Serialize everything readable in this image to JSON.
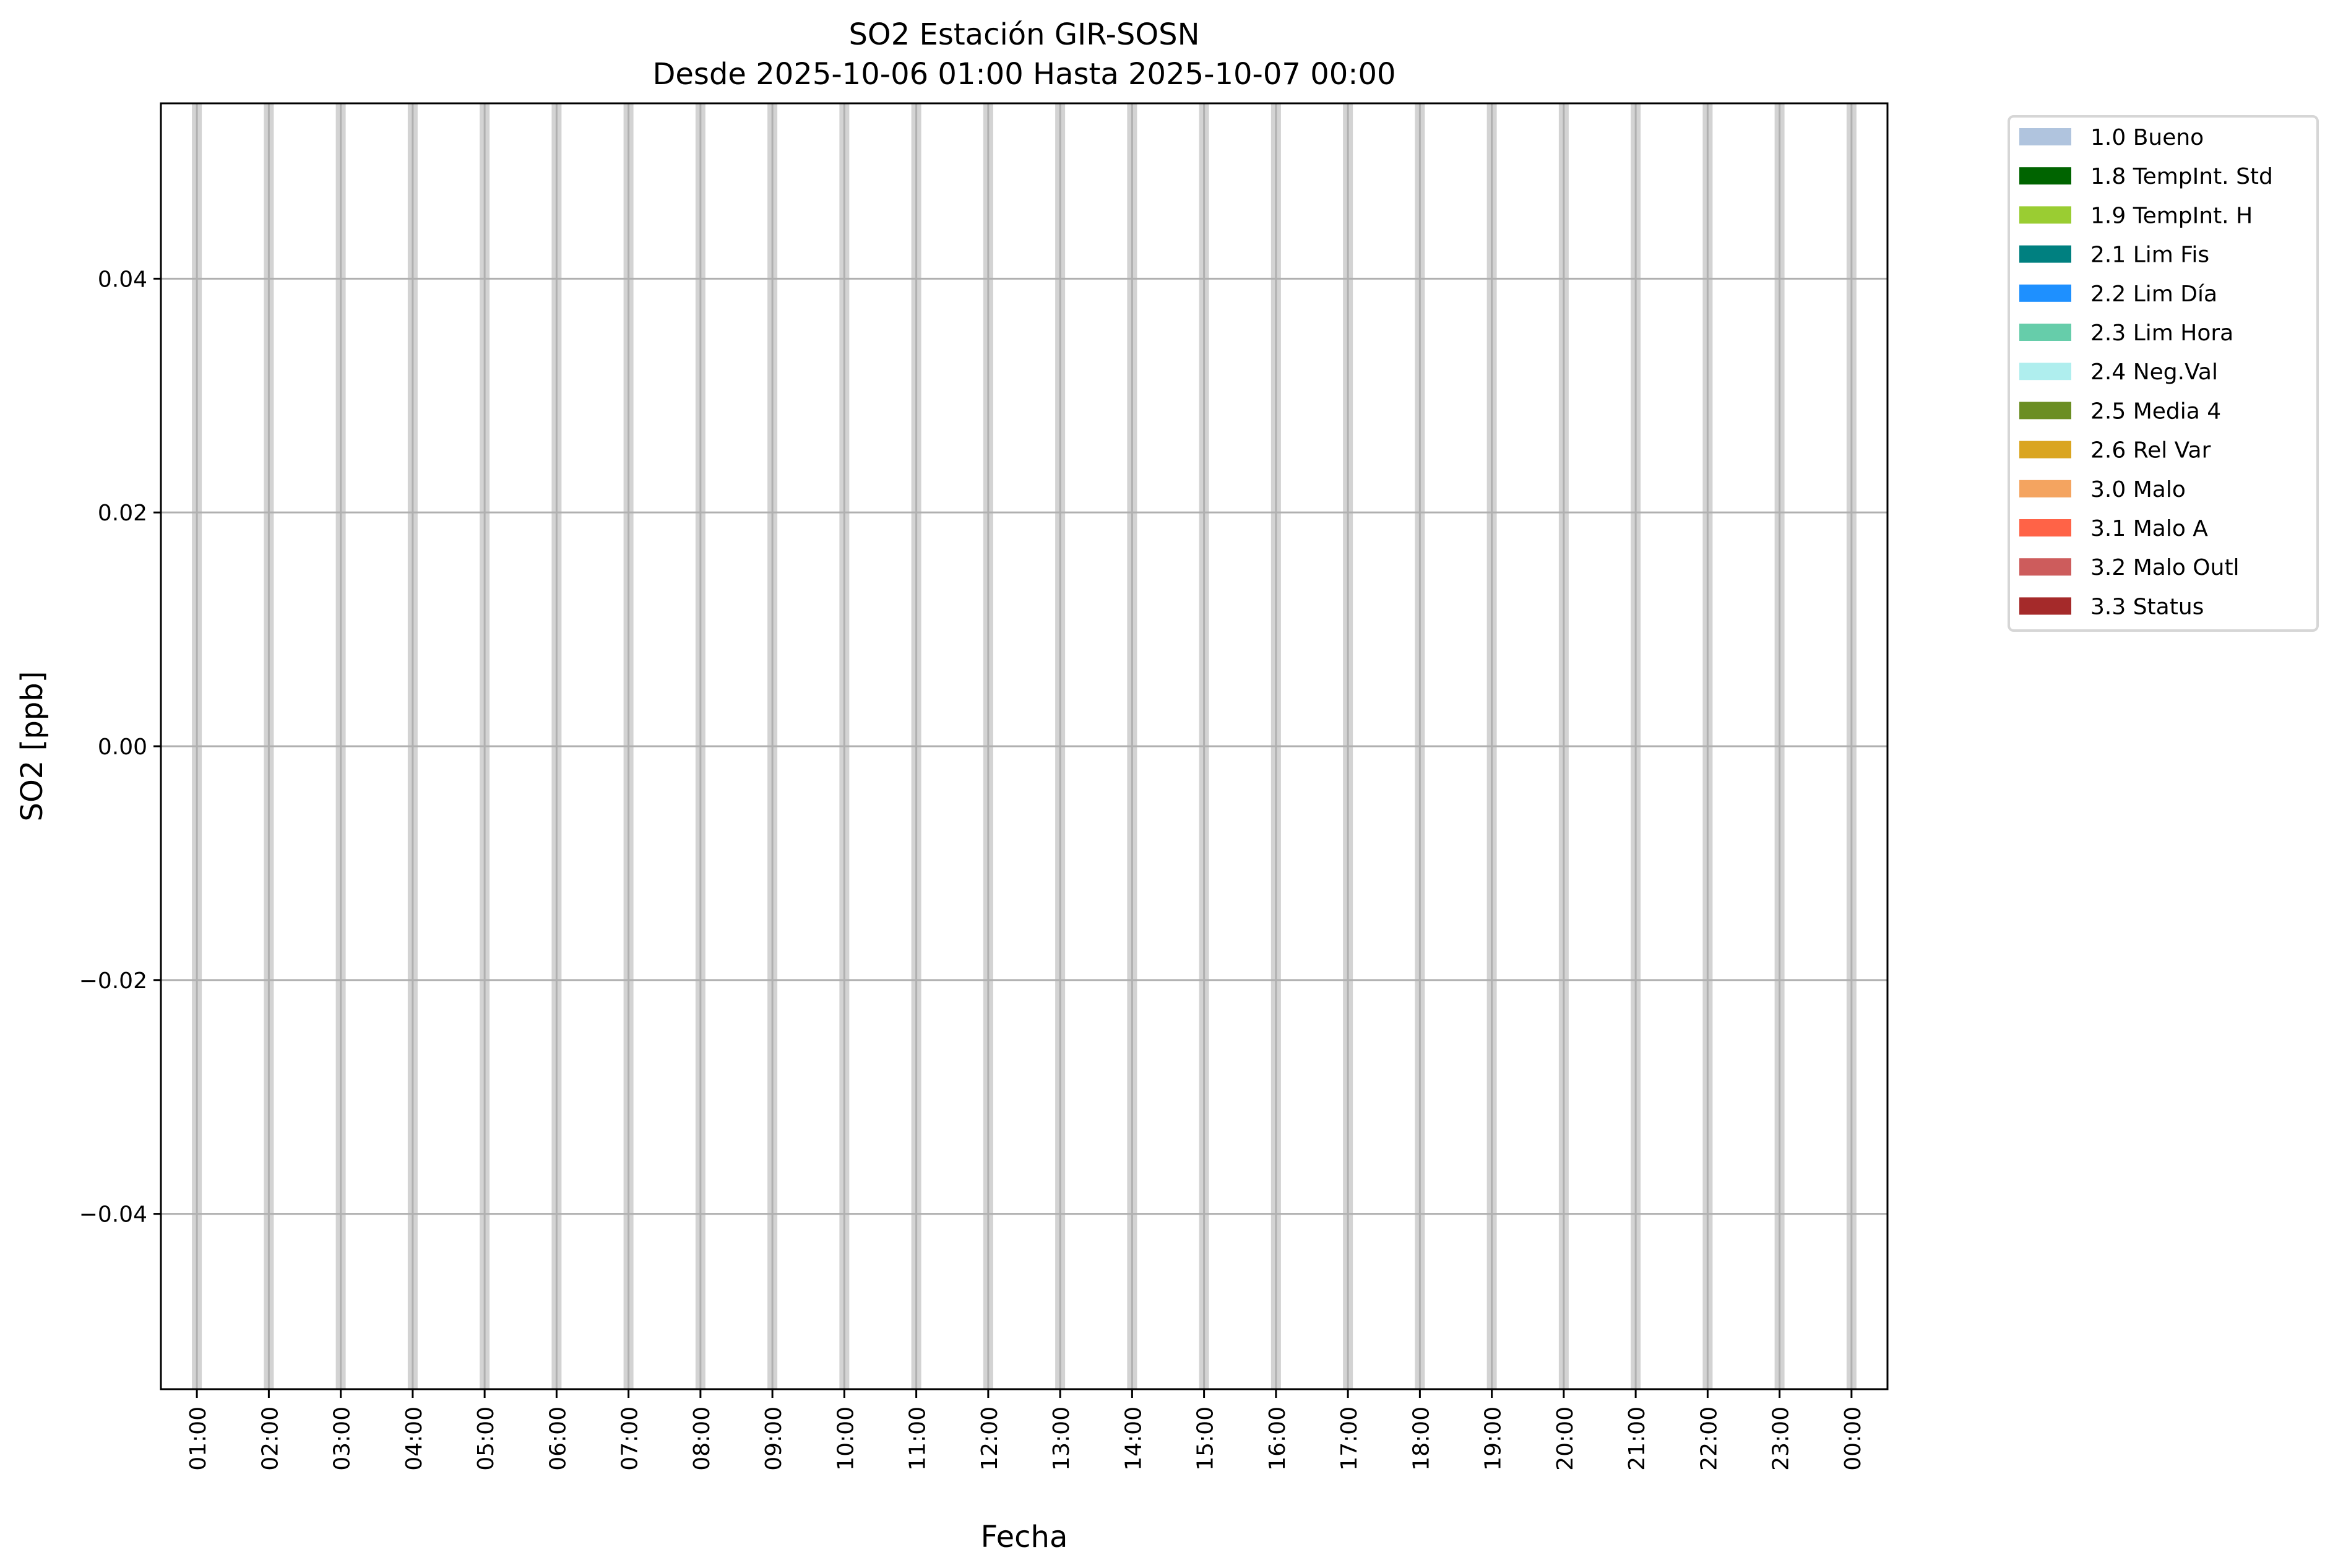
{
  "chart_data": {
    "type": "bar",
    "title": "SO2 Estación GIR-SOSN",
    "subtitle": "Desde 2025-10-06 01:00 Hasta 2025-10-07 00:00",
    "xlabel": "Fecha",
    "ylabel": "SO2 [ppb]",
    "ylim": [
      -0.055,
      0.055
    ],
    "yticks": [
      -0.04,
      -0.02,
      0.0,
      0.02,
      0.04
    ],
    "ytick_labels": [
      "−0.04",
      "−0.02",
      "0.00",
      "0.02",
      "0.04"
    ],
    "x_tick_labels": [
      "01:00",
      "02:00",
      "03:00",
      "04:00",
      "05:00",
      "06:00",
      "07:00",
      "08:00",
      "09:00",
      "10:00",
      "11:00",
      "12:00",
      "13:00",
      "14:00",
      "15:00",
      "16:00",
      "17:00",
      "18:00",
      "19:00",
      "20:00",
      "21:00",
      "22:00",
      "23:00",
      "00:00"
    ],
    "xlim_hours": [
      0.5,
      24.5
    ],
    "values": [
      0,
      0,
      0,
      0,
      0,
      0,
      0,
      0,
      0,
      0,
      0,
      0,
      0,
      0,
      0,
      0,
      0,
      0,
      0,
      0,
      0,
      0,
      0,
      0
    ],
    "bar_color": "#d3d3d3",
    "grid": true,
    "grid_color": "#b0b0b0",
    "legend_placement": "outside-top-right",
    "legend": [
      {
        "label": "1.0 Bueno",
        "color": "#b0c4de"
      },
      {
        "label": "1.8 TempInt. Std",
        "color": "#006400"
      },
      {
        "label": "1.9 TempInt. H",
        "color": "#9acd32"
      },
      {
        "label": "2.1 Lim Fis",
        "color": "#008080"
      },
      {
        "label": "2.2 Lim Día",
        "color": "#1e90ff"
      },
      {
        "label": "2.3 Lim Hora",
        "color": "#66cdaa"
      },
      {
        "label": "2.4 Neg.Val",
        "color": "#afeeee"
      },
      {
        "label": "2.5 Media 4",
        "color": "#6b8e23"
      },
      {
        "label": "2.6 Rel Var",
        "color": "#daa520"
      },
      {
        "label": "3.0 Malo",
        "color": "#f4a460"
      },
      {
        "label": "3.1 Malo A",
        "color": "#ff6347"
      },
      {
        "label": "3.2 Malo Outl",
        "color": "#cd5c5c"
      },
      {
        "label": "3.3 Status",
        "color": "#a52a2a"
      }
    ]
  }
}
